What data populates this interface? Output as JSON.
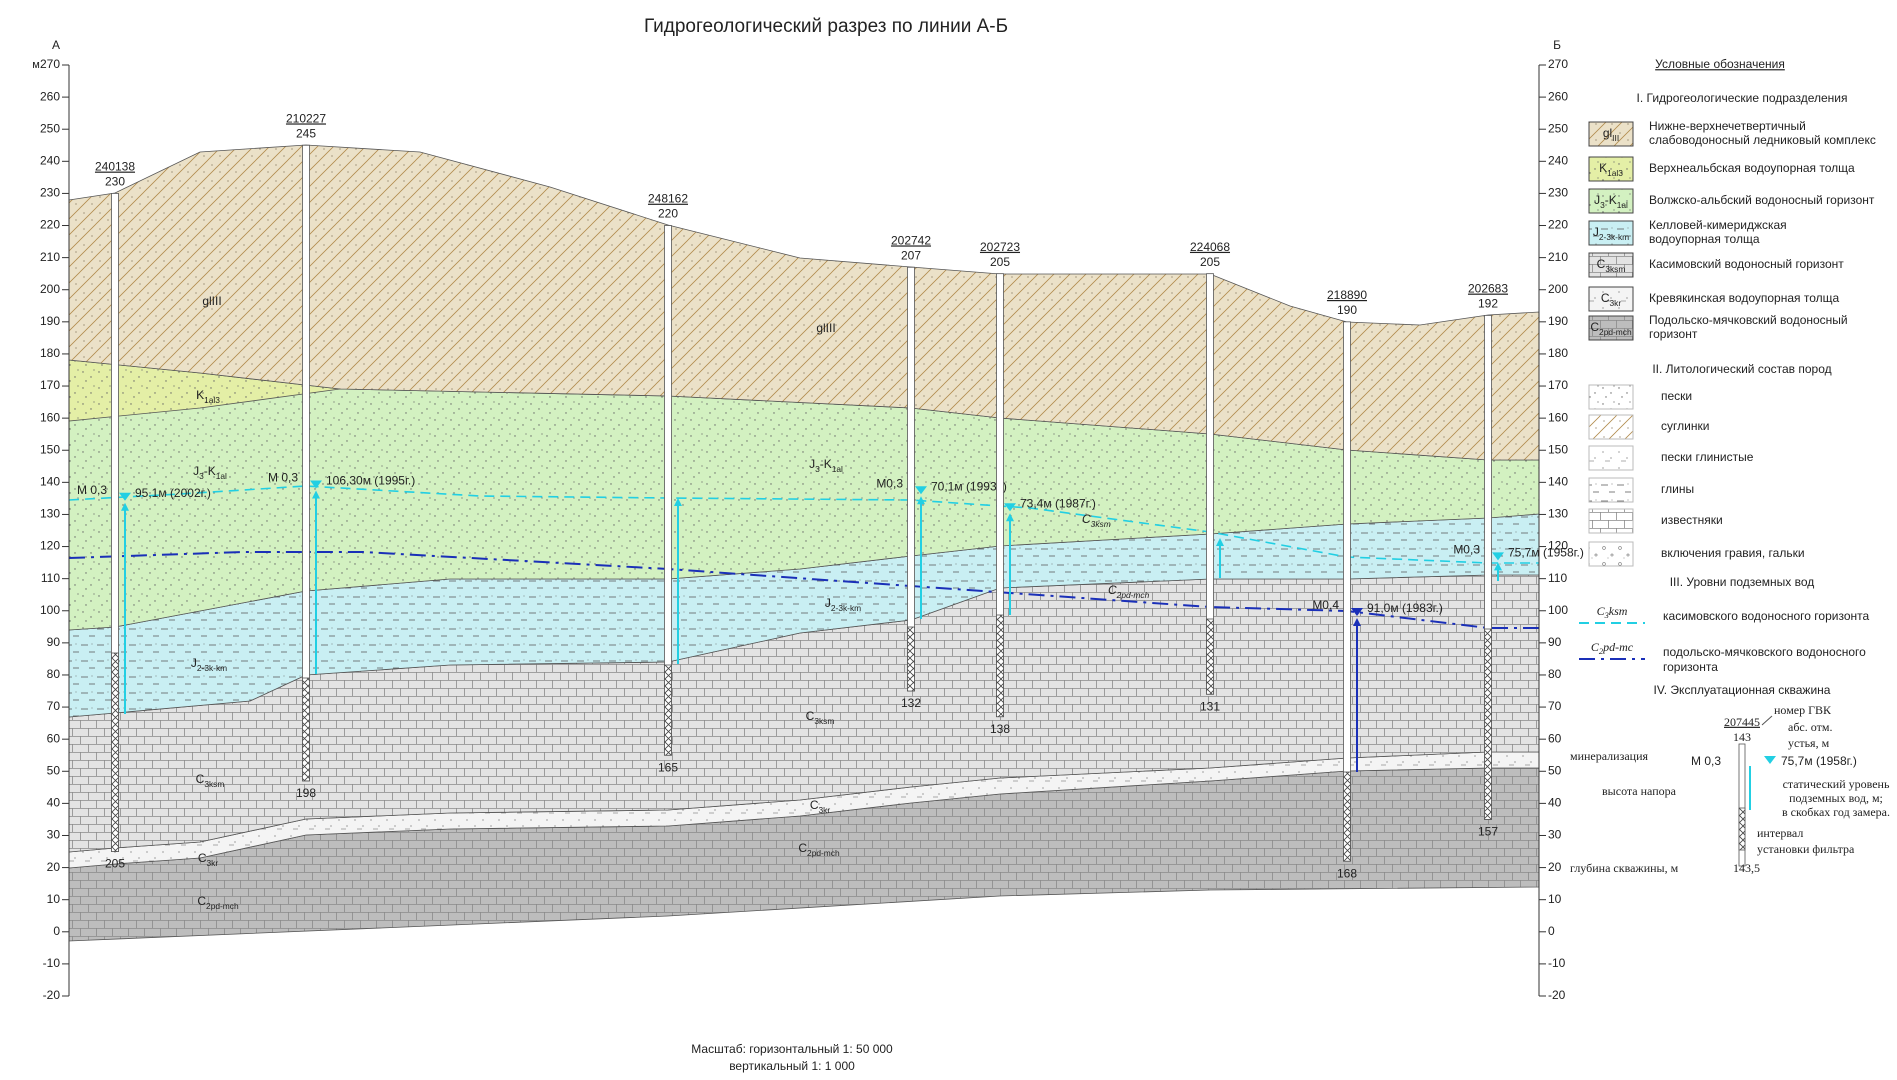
{
  "title": "Гидрогеологический разрез по линии А-Б",
  "axis": {
    "unit": "м",
    "left_end": "А",
    "right_end": "Б",
    "ticks": [
      270,
      260,
      250,
      240,
      230,
      220,
      210,
      200,
      190,
      180,
      170,
      160,
      150,
      140,
      130,
      120,
      110,
      100,
      90,
      80,
      70,
      60,
      50,
      40,
      30,
      20,
      10,
      0,
      -10,
      -20
    ]
  },
  "wells": [
    {
      "id": "240138",
      "elevation": 230,
      "depth": 205,
      "mineralization": "М 0,3",
      "water_level": 95.1,
      "water_level_label": "95,1м (2002г.)",
      "level_color": "#22cfe3"
    },
    {
      "id": "210227",
      "elevation": 245,
      "depth": 198,
      "mineralization": "М 0,3",
      "water_level": 106.3,
      "water_level_label": "106,30м (1995г.)",
      "level_color": "#22cfe3"
    },
    {
      "id": "248162",
      "elevation": 220,
      "depth": 165
    },
    {
      "id": "202742",
      "elevation": 207,
      "depth": 132,
      "mineralization": "М0,3",
      "water_level": 70.1,
      "water_level_label": "70,1м (1993г.)",
      "level_color": "#22cfe3"
    },
    {
      "id": "202723",
      "elevation": 205,
      "depth": 138,
      "water_level": 73.4,
      "water_level_label": "73,4м (1987г.)",
      "level_color": "#22cfe3"
    },
    {
      "id": "224068",
      "elevation": 205,
      "depth": 131
    },
    {
      "id": "218890",
      "elevation": 190,
      "depth": 168,
      "mineralization": "М0,4",
      "water_level": 91.0,
      "water_level_label": "91,0м (1983г.)",
      "level_color": "#1a2fb8"
    },
    {
      "id": "202683",
      "elevation": 192,
      "depth": 157,
      "mineralization": "М0,3",
      "water_level": 75.7,
      "water_level_label": "75,7м (1958г.)",
      "level_color": "#22cfe3"
    }
  ],
  "section_labels": [
    [
      "glIII"
    ],
    [
      "glIII"
    ],
    [
      "K",
      "1al3"
    ],
    [
      "J",
      "3",
      "-K",
      "1al"
    ],
    [
      "J",
      "3",
      "-K",
      "1al"
    ],
    [
      "J",
      "2-3k-km"
    ],
    [
      "J",
      "2-3k-km"
    ],
    [
      "C",
      "3ksm"
    ],
    [
      "C",
      "3ksm"
    ],
    [
      "C",
      "3kr"
    ],
    [
      "C",
      "3kr"
    ],
    [
      "C",
      "2pd-mch"
    ],
    [
      "C",
      "2pd-mch"
    ]
  ],
  "level_labels": [
    [
      "C",
      "3ksm"
    ],
    [
      "C",
      "2pd-mch"
    ]
  ],
  "legend": {
    "title": "Условные обозначения",
    "units_heading": "I. Гидрогеологические подразделения",
    "units": [
      {
        "label": [
          "gl",
          "III"
        ],
        "text": [
          "Нижне-верхнечетвертичный",
          "слабоводоносный ледниковый комплекс"
        ],
        "color": "#ebe1c8",
        "pattern": "loam"
      },
      {
        "label": [
          "K",
          "1al3"
        ],
        "text": [
          "Верхнеальбская водоупорная толща"
        ],
        "color": "#e4efa6",
        "pattern": "sand"
      },
      {
        "label": [
          "J",
          "3",
          "-K",
          "1al"
        ],
        "text": [
          "Волжско-альбский водоносный горизонт"
        ],
        "color": "#d3f1c1",
        "pattern": "sand"
      },
      {
        "label": [
          "J",
          "2-3k-km"
        ],
        "text": [
          "Келловей-кимериджская",
          "водоупорная толща"
        ],
        "color": "#c9eff3",
        "pattern": "clay"
      },
      {
        "label": [
          "C",
          "3ksm"
        ],
        "text": [
          "Касимовский водоносный горизонт"
        ],
        "color": "#e3e3e3",
        "pattern": "limestone"
      },
      {
        "label": [
          "C",
          "3kr"
        ],
        "text": [
          "Кревякинская водоупорная толща"
        ],
        "color": "#f4f4f4",
        "pattern": "sandy-clay"
      },
      {
        "label": [
          "C",
          "2pd-mch"
        ],
        "text": [
          "Подольско-мячковский водоносный",
          "горизонт"
        ],
        "color": "#bdbdbd",
        "pattern": "limestone"
      }
    ],
    "litho_heading": "II. Литологический состав пород",
    "litho": [
      {
        "text": "пески",
        "pattern": "sand"
      },
      {
        "text": "суглинки",
        "pattern": "loam"
      },
      {
        "text": "пески глинистые",
        "pattern": "sandy-clay"
      },
      {
        "text": "глины",
        "pattern": "clay"
      },
      {
        "text": "известняки",
        "pattern": "limestone"
      },
      {
        "text": "включения гравия, гальки",
        "pattern": "gravel"
      }
    ],
    "levels_heading": "III. Уровни подземных вод",
    "levels": [
      {
        "label": [
          "C",
          "3",
          "ksm"
        ],
        "text": [
          "касимовского водоносного горизонта"
        ],
        "color": "#22cfe3",
        "dash": "dash"
      },
      {
        "label": [
          "C",
          "2",
          "pd-mc"
        ],
        "text": [
          "подольско-мячковского водоносного",
          "горизонта"
        ],
        "color": "#1a2fb8",
        "dash": "dash-dot"
      }
    ],
    "example_heading": "IV. Эксплуатационная скважина",
    "example": {
      "id": "207445",
      "elevation": 143,
      "id_caption": "номер ГВК",
      "elevation_caption": [
        "абс. отм.",
        "устья, м"
      ],
      "mineralization_caption": "минерализация",
      "mineralization": "М 0,3",
      "level": "75,7м (1958г.)",
      "head_caption": "высота напора",
      "level_caption": [
        "статический уровень",
        "подземных вод, м;",
        "в скобках год замера."
      ],
      "filter_caption": [
        "интервал",
        "установки фильтра"
      ],
      "depth_caption": "глубина скважины, м",
      "depth": "143,5"
    }
  },
  "scale": {
    "line1": "Масштаб: горизонтальный 1: 50 000",
    "line2": "вертикальный 1: 1 000"
  }
}
